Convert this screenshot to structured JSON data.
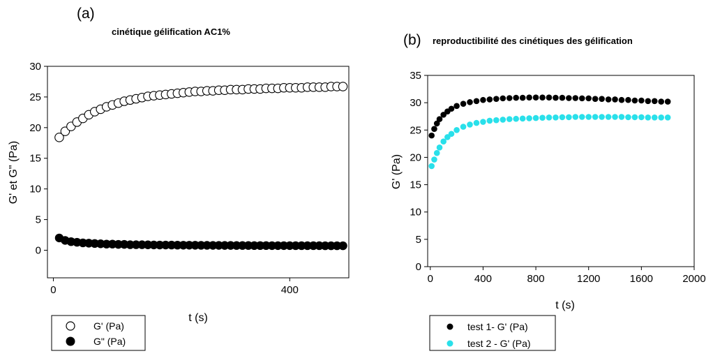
{
  "chart_data": [
    {
      "panel_letter": "(a)",
      "type": "scatter",
      "title": "cinétique gélification AC1%",
      "xlabel": "t (s)",
      "ylabel": "G' et G\" (Pa)",
      "xlim": [
        -10,
        500
      ],
      "ylim": [
        -4.5,
        30
      ],
      "xticks": [
        0,
        400
      ],
      "yticks": [
        0,
        5,
        10,
        15,
        20,
        25,
        30
      ],
      "grid": false,
      "legend_placement": "bottom-left",
      "series": [
        {
          "name": "G' (Pa)",
          "marker": "open-circle",
          "color": "#000000",
          "x": [
            10,
            20,
            30,
            40,
            50,
            60,
            70,
            80,
            90,
            100,
            110,
            120,
            130,
            140,
            150,
            160,
            170,
            180,
            190,
            200,
            210,
            220,
            230,
            240,
            250,
            260,
            270,
            280,
            290,
            300,
            310,
            320,
            330,
            340,
            350,
            360,
            370,
            380,
            390,
            400,
            410,
            420,
            430,
            440,
            450,
            460,
            470,
            480,
            490
          ],
          "y": [
            18.4,
            19.4,
            20.2,
            20.9,
            21.5,
            22.1,
            22.6,
            23.0,
            23.4,
            23.7,
            24.0,
            24.3,
            24.5,
            24.7,
            24.9,
            25.1,
            25.2,
            25.3,
            25.4,
            25.5,
            25.6,
            25.7,
            25.8,
            25.9,
            25.9,
            26.0,
            26.0,
            26.1,
            26.1,
            26.2,
            26.2,
            26.2,
            26.3,
            26.3,
            26.3,
            26.4,
            26.4,
            26.4,
            26.5,
            26.5,
            26.5,
            26.5,
            26.6,
            26.6,
            26.6,
            26.6,
            26.7,
            26.7,
            26.7
          ]
        },
        {
          "name": "G\" (Pa)",
          "marker": "filled-circle",
          "color": "#000000",
          "x": [
            10,
            20,
            30,
            40,
            50,
            60,
            70,
            80,
            90,
            100,
            110,
            120,
            130,
            140,
            150,
            160,
            170,
            180,
            190,
            200,
            210,
            220,
            230,
            240,
            250,
            260,
            270,
            280,
            290,
            300,
            310,
            320,
            330,
            340,
            350,
            360,
            370,
            380,
            390,
            400,
            410,
            420,
            430,
            440,
            450,
            460,
            470,
            480,
            490
          ],
          "y": [
            2.0,
            1.6,
            1.4,
            1.3,
            1.2,
            1.15,
            1.1,
            1.05,
            1.0,
            1.0,
            0.95,
            0.95,
            0.9,
            0.9,
            0.9,
            0.88,
            0.86,
            0.85,
            0.85,
            0.84,
            0.83,
            0.82,
            0.82,
            0.81,
            0.8,
            0.8,
            0.79,
            0.79,
            0.78,
            0.78,
            0.77,
            0.77,
            0.77,
            0.76,
            0.76,
            0.76,
            0.75,
            0.75,
            0.75,
            0.75,
            0.74,
            0.74,
            0.74,
            0.74,
            0.74,
            0.73,
            0.73,
            0.73,
            0.73
          ]
        }
      ]
    },
    {
      "panel_letter": "(b)",
      "type": "scatter",
      "title": "reproductibilité des cinétiques des gélification",
      "xlabel": "t (s)",
      "ylabel": "G' (Pa)",
      "xlim": [
        -20,
        2000
      ],
      "ylim": [
        0,
        35
      ],
      "xticks": [
        0,
        400,
        800,
        1200,
        1600,
        2000
      ],
      "yticks": [
        0,
        5,
        10,
        15,
        20,
        25,
        30,
        35
      ],
      "grid": false,
      "legend_placement": "bottom-left",
      "series": [
        {
          "name": "test 1- G' (Pa)",
          "marker": "filled-circle",
          "color": "#000000",
          "x": [
            10,
            30,
            50,
            70,
            100,
            130,
            160,
            200,
            250,
            300,
            350,
            400,
            450,
            500,
            550,
            600,
            650,
            700,
            750,
            800,
            850,
            900,
            950,
            1000,
            1050,
            1100,
            1150,
            1200,
            1250,
            1300,
            1350,
            1400,
            1450,
            1500,
            1550,
            1600,
            1650,
            1700,
            1750,
            1800
          ],
          "y": [
            24.0,
            25.2,
            26.2,
            27.0,
            27.8,
            28.4,
            28.9,
            29.4,
            29.8,
            30.1,
            30.3,
            30.5,
            30.6,
            30.7,
            30.8,
            30.85,
            30.9,
            30.9,
            30.95,
            30.95,
            30.95,
            30.95,
            30.9,
            30.9,
            30.85,
            30.85,
            30.8,
            30.8,
            30.7,
            30.7,
            30.6,
            30.6,
            30.5,
            30.5,
            30.4,
            30.4,
            30.3,
            30.3,
            30.2,
            30.2
          ]
        },
        {
          "name": "test 2 - G' (Pa)",
          "marker": "filled-circle",
          "color": "#29e0ea",
          "x": [
            10,
            30,
            50,
            70,
            100,
            130,
            160,
            200,
            250,
            300,
            350,
            400,
            450,
            500,
            550,
            600,
            650,
            700,
            750,
            800,
            850,
            900,
            950,
            1000,
            1050,
            1100,
            1150,
            1200,
            1250,
            1300,
            1350,
            1400,
            1450,
            1500,
            1550,
            1600,
            1650,
            1700,
            1750,
            1800
          ],
          "y": [
            18.4,
            19.6,
            20.8,
            21.8,
            22.9,
            23.7,
            24.3,
            25.0,
            25.6,
            26.0,
            26.3,
            26.5,
            26.7,
            26.8,
            26.9,
            27.0,
            27.05,
            27.1,
            27.15,
            27.2,
            27.25,
            27.3,
            27.3,
            27.35,
            27.35,
            27.4,
            27.4,
            27.4,
            27.4,
            27.4,
            27.4,
            27.4,
            27.4,
            27.35,
            27.35,
            27.35,
            27.3,
            27.3,
            27.3,
            27.3
          ]
        }
      ]
    }
  ]
}
